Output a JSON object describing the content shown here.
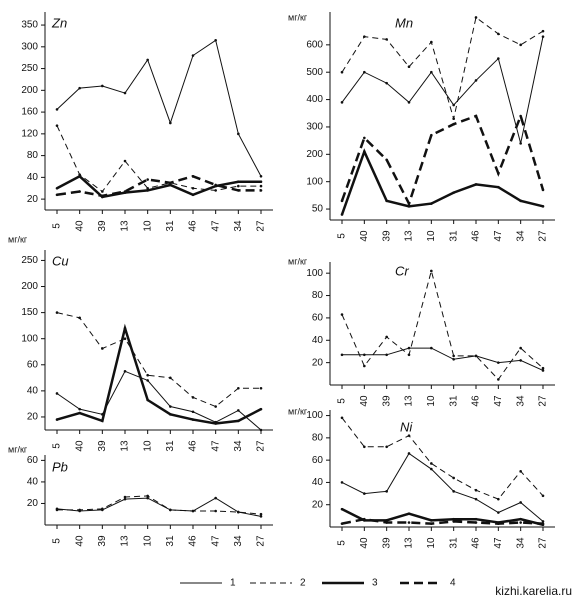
{
  "chart_data": [
    {
      "type": "line",
      "title": "Zn",
      "yscale": "piecewise",
      "categories": [
        "5",
        "40",
        "39",
        "13",
        "10",
        "31",
        "46",
        "47",
        "34",
        "27"
      ],
      "ylim": [
        10,
        380
      ],
      "yticks": [
        20,
        40,
        80,
        120,
        160,
        200,
        250,
        300,
        350
      ],
      "series": [
        {
          "name": "1",
          "color": "#111",
          "line_style": "solid",
          "line_width": 1,
          "values": [
            165,
            205,
            210,
            195,
            270,
            140,
            280,
            315,
            120,
            42
          ]
        },
        {
          "name": "2",
          "color": "#111",
          "line_style": "dashed",
          "line_width": 1,
          "values": [
            135,
            45,
            27,
            70,
            30,
            35,
            30,
            28,
            32,
            32
          ]
        },
        {
          "name": "3",
          "color": "#111",
          "line_style": "solid",
          "line_width": 2.5,
          "values": [
            30,
            42,
            22,
            26,
            28,
            33,
            24,
            32,
            36,
            36
          ]
        },
        {
          "name": "4",
          "color": "#111",
          "line_style": "dashed",
          "line_width": 2.5,
          "values": [
            24,
            27,
            23,
            27,
            38,
            35,
            42,
            33,
            28,
            28
          ]
        }
      ]
    },
    {
      "type": "line",
      "title": "Mn",
      "y_label": "мг/кг",
      "yscale": "piecewise",
      "categories": [
        "5",
        "40",
        "39",
        "13",
        "10",
        "31",
        "46",
        "47",
        "34",
        "27"
      ],
      "ylim": [
        30,
        720
      ],
      "yticks": [
        50,
        100,
        200,
        300,
        400,
        500,
        600
      ],
      "series": [
        {
          "name": "1",
          "color": "#111",
          "line_style": "solid",
          "line_width": 1,
          "values": [
            390,
            500,
            460,
            390,
            500,
            380,
            470,
            550,
            240,
            630
          ]
        },
        {
          "name": "2",
          "color": "#111",
          "line_style": "dashed",
          "line_width": 1,
          "values": [
            500,
            630,
            620,
            520,
            610,
            330,
            700,
            640,
            600,
            650
          ]
        },
        {
          "name": "3",
          "color": "#111",
          "line_style": "solid",
          "line_width": 2.5,
          "values": [
            40,
            210,
            65,
            55,
            60,
            80,
            95,
            90,
            65,
            55
          ]
        },
        {
          "name": "4",
          "color": "#111",
          "line_style": "dashed",
          "line_width": 2.5,
          "values": [
            65,
            260,
            180,
            60,
            270,
            310,
            340,
            130,
            340,
            85
          ]
        }
      ]
    },
    {
      "type": "line",
      "title": "Cu",
      "y_label": "мг/кг",
      "yscale": "piecewise",
      "categories": [
        "5",
        "40",
        "39",
        "13",
        "10",
        "31",
        "46",
        "47",
        "34",
        "27"
      ],
      "ylim": [
        10,
        270
      ],
      "yticks": [
        20,
        40,
        60,
        100,
        150,
        200,
        250
      ],
      "series": [
        {
          "name": "1",
          "color": "#111",
          "line_style": "solid",
          "line_width": 1,
          "values": [
            38,
            26,
            22,
            55,
            48,
            28,
            24,
            16,
            25,
            10
          ]
        },
        {
          "name": "2",
          "color": "#111",
          "line_style": "dashed",
          "line_width": 1,
          "values": [
            150,
            140,
            85,
            100,
            52,
            50,
            35,
            28,
            42,
            42
          ]
        },
        {
          "name": "3",
          "color": "#111",
          "line_style": "solid",
          "line_width": 2.5,
          "values": [
            18,
            23,
            17,
            120,
            33,
            22,
            18,
            15,
            17,
            26
          ]
        }
      ]
    },
    {
      "type": "line",
      "title": "Cr",
      "y_label": "мг/кг",
      "categories": [
        "5",
        "40",
        "39",
        "13",
        "10",
        "31",
        "46",
        "47",
        "34",
        "27"
      ],
      "ylim": [
        0,
        110
      ],
      "yticks": [
        20,
        40,
        60,
        80,
        100
      ],
      "series": [
        {
          "name": "1",
          "color": "#111",
          "line_style": "solid",
          "line_width": 1,
          "values": [
            27,
            27,
            27,
            33,
            33,
            23,
            26,
            20,
            22,
            13
          ]
        },
        {
          "name": "2",
          "color": "#111",
          "line_style": "dashed",
          "line_width": 1,
          "values": [
            63,
            17,
            43,
            27,
            102,
            26,
            26,
            5,
            33,
            15
          ]
        }
      ]
    },
    {
      "type": "line",
      "title": "Pb",
      "y_label": "мг/кг",
      "categories": [
        "5",
        "40",
        "39",
        "13",
        "10",
        "31",
        "46",
        "47",
        "34",
        "27"
      ],
      "ylim": [
        0,
        65
      ],
      "yticks": [
        20,
        40,
        60
      ],
      "series": [
        {
          "name": "1",
          "color": "#111",
          "line_style": "solid",
          "line_width": 1,
          "values": [
            15,
            13,
            14,
            24,
            25,
            14,
            13,
            25,
            12,
            8
          ]
        },
        {
          "name": "2",
          "color": "#111",
          "line_style": "dashed",
          "line_width": 1,
          "values": [
            14,
            14,
            15,
            26,
            27,
            14,
            13,
            13,
            12,
            10
          ]
        }
      ]
    },
    {
      "type": "line",
      "title": "Ni",
      "y_label": "мг/кг",
      "categories": [
        "5",
        "40",
        "39",
        "13",
        "10",
        "31",
        "46",
        "47",
        "34",
        "27"
      ],
      "ylim": [
        0,
        105
      ],
      "yticks": [
        20,
        40,
        60,
        80,
        100
      ],
      "series": [
        {
          "name": "1",
          "color": "#111",
          "line_style": "solid",
          "line_width": 1,
          "values": [
            40,
            30,
            32,
            66,
            52,
            32,
            25,
            13,
            22,
            5
          ]
        },
        {
          "name": "2",
          "color": "#111",
          "line_style": "dashed",
          "line_width": 1,
          "values": [
            98,
            72,
            72,
            82,
            57,
            44,
            33,
            25,
            50,
            28
          ]
        },
        {
          "name": "3",
          "color": "#111",
          "line_style": "solid",
          "line_width": 2.5,
          "values": [
            16,
            6,
            6,
            12,
            6,
            7,
            7,
            4,
            7,
            2
          ]
        },
        {
          "name": "4",
          "color": "#111",
          "line_style": "dashed",
          "line_width": 2.5,
          "values": [
            3,
            7,
            4,
            4,
            3,
            5,
            4,
            3,
            4,
            3
          ]
        }
      ]
    }
  ],
  "watermark": "kizhi.karelia.ru"
}
